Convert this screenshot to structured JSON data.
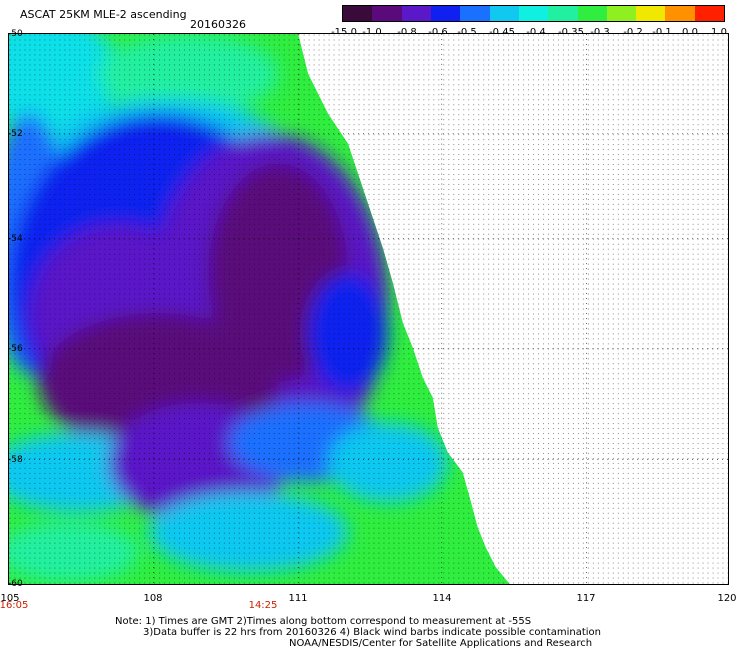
{
  "header": {
    "title": "ASCAT 25KM MLE-2 ascending",
    "date": "20160326"
  },
  "colorbar": {
    "labels": [
      "-15.0",
      "-1.0",
      "-0.8",
      "-0.6",
      "-0.5",
      "-0.45",
      "-0.4",
      "-0.35",
      "-0.3",
      "-0.2",
      "-0.1",
      "0.0",
      "1.0"
    ],
    "colors": [
      "#3a0a3a",
      "#5a0a7a",
      "#5a18c8",
      "#1020f0",
      "#1a70ff",
      "#10c8f0",
      "#10f0e0",
      "#20f0a0",
      "#30ee40",
      "#8ef020",
      "#f0e800",
      "#ff9000",
      "#ff2000"
    ]
  },
  "axes": {
    "x_ticks": [
      "105",
      "108",
      "111",
      "114",
      "117",
      "120"
    ],
    "y_ticks": [
      "-50",
      "-52",
      "-54",
      "-56",
      "-58",
      "-60"
    ],
    "times": [
      "16:05",
      "14:25"
    ]
  },
  "notes": {
    "line1": "Note: 1) Times are GMT 2)Times along bottom correspond to measurement at -55S",
    "line2": "3)Data buffer is 22 hrs from 20160326 4) Black wind barbs indicate possible contamination",
    "line3": "NOAA/NESDIS/Center for Satellite Applications and Research"
  }
}
